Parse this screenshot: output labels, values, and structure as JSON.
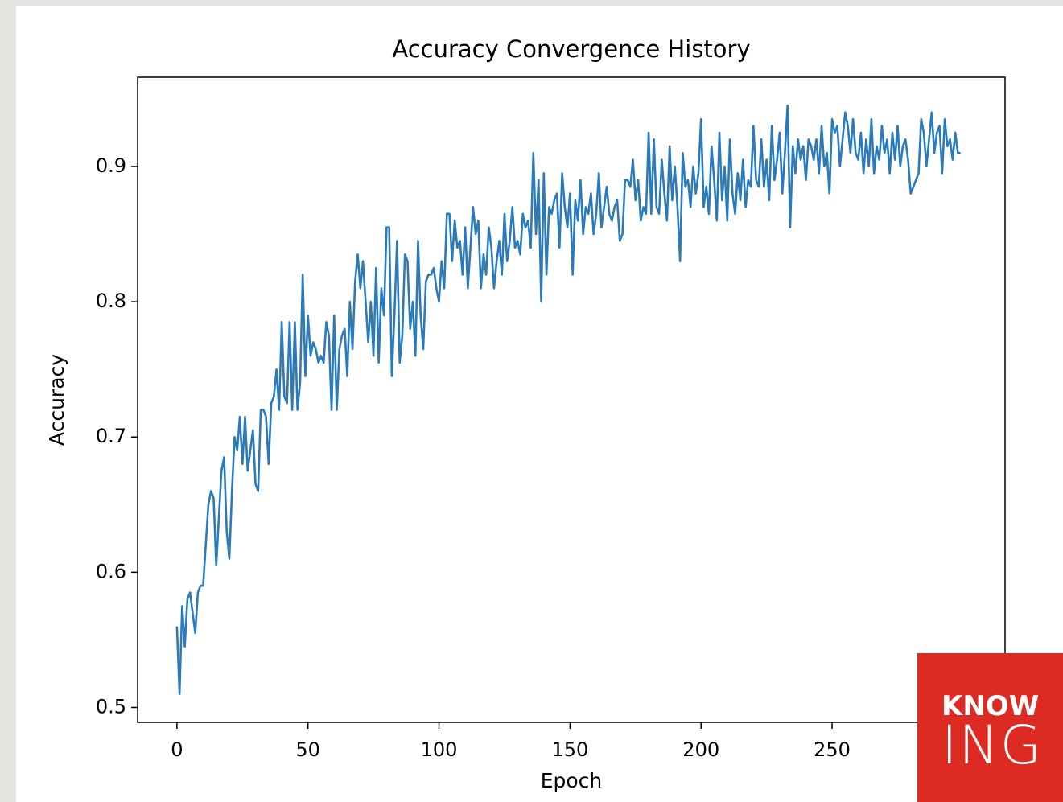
{
  "chart_data": {
    "type": "line",
    "title": "Accuracy Convergence History",
    "xlabel": "Epoch",
    "ylabel": "Accuracy",
    "color": "#2b7bba",
    "xlim": [
      -15,
      316
    ],
    "ylim": [
      0.489,
      0.966
    ],
    "xticks": [
      0,
      50,
      100,
      150,
      200,
      250
    ],
    "yticks": [
      0.5,
      0.6,
      0.7,
      0.8,
      0.9
    ],
    "x": [
      0,
      1,
      2,
      3,
      4,
      5,
      6,
      7,
      8,
      9,
      10,
      11,
      12,
      13,
      14,
      15,
      16,
      17,
      18,
      19,
      20,
      21,
      22,
      23,
      24,
      25,
      26,
      27,
      28,
      29,
      30,
      31,
      32,
      33,
      34,
      35,
      36,
      37,
      38,
      39,
      40,
      41,
      42,
      43,
      44,
      45,
      46,
      47,
      48,
      49,
      50,
      51,
      52,
      53,
      54,
      55,
      56,
      57,
      58,
      59,
      60,
      61,
      62,
      63,
      64,
      65,
      66,
      67,
      68,
      69,
      70,
      71,
      72,
      73,
      74,
      75,
      76,
      77,
      78,
      79,
      80,
      81,
      82,
      83,
      84,
      85,
      86,
      87,
      88,
      89,
      90,
      91,
      92,
      93,
      94,
      95,
      96,
      97,
      98,
      99,
      100,
      101,
      102,
      103,
      104,
      105,
      106,
      107,
      108,
      109,
      110,
      111,
      112,
      113,
      114,
      115,
      116,
      117,
      118,
      119,
      120,
      121,
      122,
      123,
      124,
      125,
      126,
      127,
      128,
      129,
      130,
      131,
      132,
      133,
      134,
      135,
      136,
      137,
      138,
      139,
      140,
      141,
      142,
      143,
      144,
      145,
      146,
      147,
      148,
      149,
      150,
      151,
      152,
      153,
      154,
      155,
      156,
      157,
      158,
      159,
      160,
      161,
      162,
      163,
      164,
      165,
      166,
      167,
      168,
      169,
      170,
      171,
      172,
      173,
      174,
      175,
      176,
      177,
      178,
      179,
      180,
      181,
      182,
      183,
      184,
      185,
      186,
      187,
      188,
      189,
      190,
      191,
      192,
      193,
      194,
      195,
      196,
      197,
      198,
      199,
      200,
      201,
      202,
      203,
      204,
      205,
      206,
      207,
      208,
      209,
      210,
      211,
      212,
      213,
      214,
      215,
      216,
      217,
      218,
      219,
      220,
      221,
      222,
      223,
      224,
      225,
      226,
      227,
      228,
      229,
      230,
      231,
      232,
      233,
      234,
      235,
      236,
      237,
      238,
      239,
      240,
      241,
      242,
      243,
      244,
      245,
      246,
      247,
      248,
      249,
      250,
      251,
      252,
      253,
      254,
      255,
      256,
      257,
      258,
      259,
      260,
      261,
      262,
      263,
      264,
      265,
      266,
      267,
      268,
      269,
      270,
      271,
      272,
      273,
      274,
      275,
      276,
      277,
      278,
      279,
      280,
      281,
      282,
      283,
      284,
      285,
      286,
      287,
      288,
      289,
      290,
      291,
      292,
      293,
      294,
      295,
      296,
      297,
      298,
      299
    ],
    "values": [
      0.56,
      0.51,
      0.575,
      0.545,
      0.58,
      0.585,
      0.57,
      0.555,
      0.585,
      0.59,
      0.59,
      0.62,
      0.65,
      0.66,
      0.655,
      0.605,
      0.64,
      0.675,
      0.685,
      0.63,
      0.61,
      0.66,
      0.7,
      0.69,
      0.715,
      0.68,
      0.715,
      0.675,
      0.69,
      0.705,
      0.665,
      0.66,
      0.72,
      0.72,
      0.715,
      0.68,
      0.725,
      0.73,
      0.75,
      0.72,
      0.785,
      0.73,
      0.725,
      0.785,
      0.72,
      0.785,
      0.72,
      0.74,
      0.82,
      0.745,
      0.79,
      0.76,
      0.77,
      0.765,
      0.755,
      0.76,
      0.755,
      0.785,
      0.775,
      0.72,
      0.79,
      0.72,
      0.765,
      0.775,
      0.78,
      0.745,
      0.8,
      0.765,
      0.815,
      0.835,
      0.81,
      0.83,
      0.8,
      0.77,
      0.8,
      0.76,
      0.825,
      0.755,
      0.81,
      0.79,
      0.855,
      0.855,
      0.745,
      0.79,
      0.845,
      0.755,
      0.775,
      0.835,
      0.83,
      0.78,
      0.8,
      0.76,
      0.845,
      0.79,
      0.765,
      0.815,
      0.82,
      0.82,
      0.825,
      0.81,
      0.8,
      0.83,
      0.81,
      0.865,
      0.865,
      0.83,
      0.86,
      0.84,
      0.845,
      0.82,
      0.855,
      0.81,
      0.84,
      0.87,
      0.85,
      0.86,
      0.81,
      0.835,
      0.82,
      0.855,
      0.84,
      0.81,
      0.83,
      0.845,
      0.82,
      0.865,
      0.83,
      0.845,
      0.87,
      0.84,
      0.845,
      0.835,
      0.865,
      0.855,
      0.86,
      0.84,
      0.91,
      0.85,
      0.89,
      0.8,
      0.895,
      0.82,
      0.87,
      0.865,
      0.875,
      0.88,
      0.84,
      0.895,
      0.87,
      0.855,
      0.88,
      0.82,
      0.875,
      0.86,
      0.89,
      0.85,
      0.87,
      0.865,
      0.88,
      0.85,
      0.865,
      0.895,
      0.855,
      0.87,
      0.885,
      0.865,
      0.86,
      0.87,
      0.875,
      0.845,
      0.85,
      0.89,
      0.89,
      0.885,
      0.905,
      0.875,
      0.89,
      0.86,
      0.87,
      0.865,
      0.925,
      0.865,
      0.92,
      0.87,
      0.865,
      0.905,
      0.88,
      0.86,
      0.915,
      0.875,
      0.9,
      0.87,
      0.83,
      0.91,
      0.885,
      0.89,
      0.87,
      0.9,
      0.88,
      0.895,
      0.935,
      0.87,
      0.885,
      0.865,
      0.915,
      0.89,
      0.86,
      0.925,
      0.875,
      0.9,
      0.86,
      0.92,
      0.88,
      0.865,
      0.895,
      0.875,
      0.905,
      0.87,
      0.89,
      0.885,
      0.93,
      0.89,
      0.885,
      0.92,
      0.885,
      0.905,
      0.875,
      0.93,
      0.89,
      0.905,
      0.925,
      0.88,
      0.91,
      0.945,
      0.855,
      0.915,
      0.895,
      0.92,
      0.905,
      0.915,
      0.89,
      0.92,
      0.915,
      0.905,
      0.92,
      0.895,
      0.93,
      0.9,
      0.91,
      0.88,
      0.935,
      0.925,
      0.93,
      0.9,
      0.92,
      0.94,
      0.93,
      0.91,
      0.935,
      0.91,
      0.905,
      0.925,
      0.895,
      0.92,
      0.9,
      0.935,
      0.895,
      0.915,
      0.905,
      0.93,
      0.91,
      0.92,
      0.895,
      0.925,
      0.905,
      0.93,
      0.9,
      0.915,
      0.92,
      0.905,
      0.88,
      0.885,
      0.89,
      0.895,
      0.935,
      0.925,
      0.9,
      0.92,
      0.94,
      0.91,
      0.925,
      0.93,
      0.895,
      0.935,
      0.915,
      0.92,
      0.905,
      0.925,
      0.91,
      0.91
    ]
  },
  "logo": {
    "top": "KNOW",
    "bottom": "ING"
  }
}
